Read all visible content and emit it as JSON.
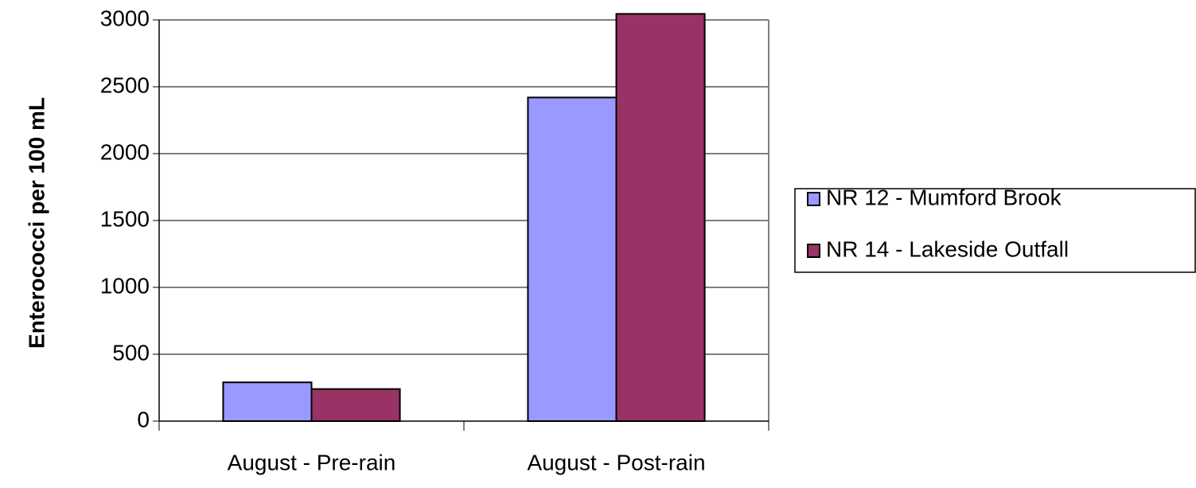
{
  "chart_data": {
    "type": "bar",
    "y_axis_label": "Enterococci per 100 mL",
    "categories": [
      "August - Pre-rain",
      "August - Post-rain"
    ],
    "series": [
      {
        "name": "NR 12 - Mumford Brook",
        "color": "#9999ff",
        "values": [
          290,
          2420
        ]
      },
      {
        "name": "NR 14 - Lakeside Outfall",
        "color": "#993366",
        "values": [
          240,
          3045
        ]
      }
    ],
    "ylim": [
      0,
      3000
    ],
    "yticks": [
      0,
      500,
      1000,
      1500,
      2000,
      2500,
      3000
    ],
    "grid": true,
    "legend": "right"
  }
}
